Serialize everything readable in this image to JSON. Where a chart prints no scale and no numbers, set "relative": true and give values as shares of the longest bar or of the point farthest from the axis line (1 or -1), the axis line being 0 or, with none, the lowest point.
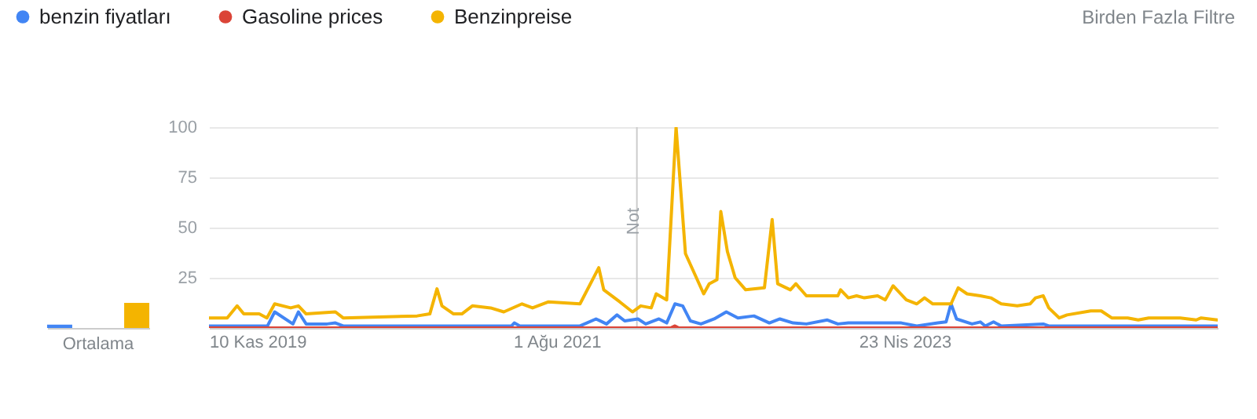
{
  "chart_data": [
    {
      "type": "bar",
      "categories": [
        "Ortalama"
      ],
      "relative": true,
      "series": [
        {
          "color": "#4285f4",
          "values": [
            0.13
          ]
        },
        {
          "color": "#db4437",
          "values": [
            0
          ]
        },
        {
          "color": "#f4b400",
          "values": [
            1
          ]
        }
      ]
    },
    {
      "type": "line",
      "grid": "y",
      "legend": "top left",
      "ylim": [
        0,
        100
      ],
      "yticks": [
        25,
        50,
        75,
        100
      ],
      "xlim": [
        "2019-11-10",
        "2024-11-10"
      ],
      "xticks": [
        {
          "value": "2019-11-10",
          "label": "10 Kas 2019"
        },
        {
          "value": "2021-08-01",
          "label": "1 Ağu 2021"
        },
        {
          "value": "2023-04-23",
          "label": "23 Nis 2023"
        }
      ],
      "ref_lines": [
        {
          "axis": "x",
          "value": "2021-12-24",
          "label": "Not",
          "color": "#cccccc"
        }
      ],
      "annotations": [
        "Birden Fazla Filtre"
      ],
      "series": [
        {
          "name": "benzin fiyatları",
          "color": "#4285f4",
          "x": [
            "2019-11-10",
            "2020-02-24",
            "2020-03-08",
            "2020-04-10",
            "2020-04-20",
            "2020-05-04",
            "2020-06-11",
            "2020-06-26",
            "2020-07-10",
            "2021-05-11",
            "2021-05-16",
            "2021-05-26",
            "2021-09-12",
            "2021-10-11",
            "2021-10-30",
            "2021-11-18",
            "2021-12-02",
            "2021-12-26",
            "2022-01-09",
            "2022-02-02",
            "2022-02-16",
            "2022-03-03",
            "2022-03-17",
            "2022-03-31",
            "2022-04-19",
            "2022-05-13",
            "2022-06-04",
            "2022-06-25",
            "2022-07-24",
            "2022-08-21",
            "2022-09-09",
            "2022-10-03",
            "2022-10-27",
            "2022-12-04",
            "2022-12-23",
            "2023-01-11",
            "2023-04-17",
            "2023-05-15",
            "2023-06-22",
            "2023-07-07",
            "2023-07-16",
            "2023-07-26",
            "2023-08-23",
            "2023-09-07",
            "2023-09-16",
            "2023-10-01",
            "2023-10-15",
            "2023-12-30",
            "2024-01-09",
            "2024-11-09"
          ],
          "values": [
            1,
            1,
            8,
            2,
            8,
            2,
            2,
            2.5,
            1,
            1,
            2.5,
            1,
            1,
            4.5,
            2,
            6.5,
            3.5,
            4.5,
            2,
            4.5,
            2.5,
            12,
            11,
            3.5,
            2,
            4.5,
            8,
            5,
            6,
            2.5,
            4.5,
            2.5,
            2,
            4,
            2,
            2.5,
            2.5,
            1,
            2.5,
            3,
            12,
            4.5,
            2,
            3,
            1,
            3,
            1,
            2,
            1,
            1
          ]
        },
        {
          "name": "Gasoline prices",
          "color": "#db4437",
          "x": [
            "2019-11-10",
            "2022-02-23",
            "2022-03-03",
            "2022-03-10",
            "2024-11-09"
          ],
          "values": [
            0,
            0,
            1,
            0,
            0
          ]
        },
        {
          "name": "Benzinpreise",
          "color": "#f4b400",
          "x": [
            "2019-11-10",
            "2019-12-13",
            "2019-12-31",
            "2020-01-12",
            "2020-02-09",
            "2020-02-23",
            "2020-03-08",
            "2020-04-06",
            "2020-04-20",
            "2020-05-04",
            "2020-06-26",
            "2020-07-10",
            "2020-11-21",
            "2020-12-14",
            "2020-12-27",
            "2021-01-05",
            "2021-01-26",
            "2021-02-10",
            "2021-03-01",
            "2021-04-03",
            "2021-04-27",
            "2021-05-30",
            "2021-06-18",
            "2021-07-17",
            "2021-09-12",
            "2021-10-16",
            "2021-10-25",
            "2021-11-23",
            "2021-12-16",
            "2021-12-31",
            "2022-01-19",
            "2022-01-28",
            "2022-02-16",
            "2022-03-05",
            "2022-03-22",
            "2022-04-24",
            "2022-05-04",
            "2022-05-18",
            "2022-05-25",
            "2022-06-06",
            "2022-06-20",
            "2022-07-09",
            "2022-08-12",
            "2022-08-26",
            "2022-09-05",
            "2022-09-28",
            "2022-10-08",
            "2022-10-27",
            "2022-12-23",
            "2022-12-28",
            "2023-01-11",
            "2023-01-26",
            "2023-02-09",
            "2023-03-05",
            "2023-03-19",
            "2023-04-02",
            "2023-04-26",
            "2023-05-15",
            "2023-05-29",
            "2023-06-13",
            "2023-07-16",
            "2023-07-29",
            "2023-08-14",
            "2023-09-07",
            "2023-09-26",
            "2023-10-15",
            "2023-11-13",
            "2023-12-06",
            "2023-12-16",
            "2023-12-30",
            "2024-01-09",
            "2024-01-28",
            "2024-02-11",
            "2024-03-25",
            "2024-04-13",
            "2024-05-02",
            "2024-05-31",
            "2024-06-19",
            "2024-07-08",
            "2024-09-03",
            "2024-10-02",
            "2024-10-11",
            "2024-11-09"
          ],
          "values": [
            5,
            5,
            11,
            7,
            7,
            5,
            12,
            10,
            11,
            7,
            8,
            5,
            6,
            7,
            19.5,
            11,
            7,
            7,
            11,
            10,
            8,
            12,
            10,
            13,
            12,
            30,
            19,
            13,
            8,
            11,
            10,
            17,
            14,
            100,
            37,
            17,
            22,
            24,
            58,
            38,
            25,
            19,
            20,
            54,
            22,
            19,
            22,
            16,
            16,
            19,
            15,
            16,
            15,
            16,
            14,
            21,
            14,
            12,
            15,
            12,
            12,
            20,
            17,
            16,
            15,
            12,
            11,
            12,
            15,
            16,
            10,
            5,
            6.5,
            8.5,
            8.5,
            5,
            5,
            4,
            5,
            5,
            4,
            5,
            4
          ]
        }
      ]
    }
  ]
}
